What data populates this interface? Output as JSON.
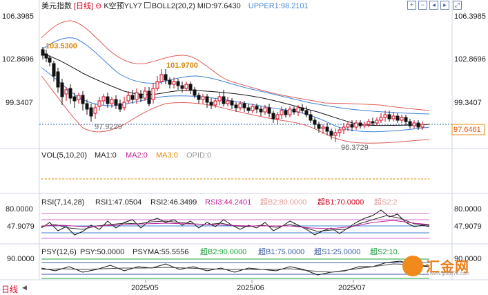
{
  "header": {
    "symbol": "美元指数",
    "period": "[日线]",
    "minus_icon": "minus-circle-icon",
    "k_prefix": "K空预YLY7",
    "boll": "BOLL2(20,2)",
    "mid": "MID:97.6430",
    "upper": "UPPER1:98.2101"
  },
  "toolbar": {
    "buttons": [
      "plus-icon",
      "minus-icon",
      "left-icon",
      "right-icon",
      "fullscreen-icon"
    ]
  },
  "price_axis": {
    "labels": [
      "106.3985",
      "102.8696",
      "99.3407"
    ],
    "current": "97.6461"
  },
  "annotations": {
    "high1": "103.5300",
    "high2": "101.9700",
    "low1": "97.9229",
    "low2": "96.3729"
  },
  "volume": {
    "vol": "VOL(5,10,20)",
    "ma1": "MA1:0",
    "ma2": "MA2:0",
    "ma3": "MA3:0",
    "opid": "OPID:0"
  },
  "rsi": {
    "label": "RSI(7,14,28)",
    "rsi1": "RSI1:47.0504",
    "rsi2": "RSI2:46.3499",
    "rsi3": "RSI3:44.2401",
    "b2": "超B2:80.0000",
    "b1": "超B1:70.0000",
    "s2": "超S2:2",
    "axis": [
      "80.0000",
      "47.9079"
    ]
  },
  "psy": {
    "label": "PSY(12,6)",
    "psy": "PSY:50.0000",
    "psyma": "PSYMA:55.5556",
    "b2": "超B2:90.0000",
    "b1": "超B1:75.0000",
    "s1": "超S1:25.0000",
    "s2": "超S2:10.",
    "axis": "90.0000"
  },
  "dates": [
    "2025/05",
    "2025/06",
    "2025/07"
  ],
  "footer": {
    "period_label": "日线"
  },
  "watermark": {
    "name": "汇金网",
    "url": "www.gold678.com"
  },
  "colors": {
    "up": "#d0021b",
    "down": "#111111",
    "mid": "#111111",
    "upper": "#e05a5a",
    "inner": "#3d7fd6",
    "current": "#1f5fbf",
    "annotation": "#d4860b",
    "ma2": "#c0209a",
    "ma3": "#e08a00"
  }
}
